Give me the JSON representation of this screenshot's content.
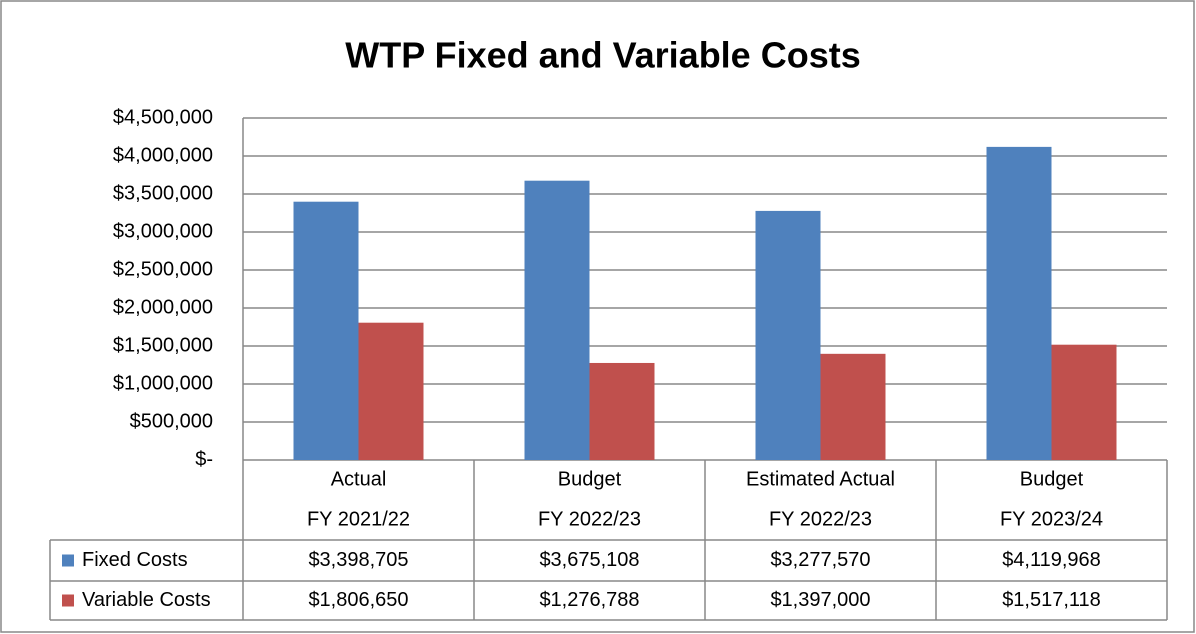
{
  "chart_data": {
    "type": "bar",
    "title": "WTP Fixed and Variable Costs",
    "categories": [
      [
        "Actual",
        "FY 2021/22"
      ],
      [
        "Budget",
        "FY 2022/23"
      ],
      [
        "Estimated Actual",
        "FY 2022/23"
      ],
      [
        "Budget",
        "FY 2023/24"
      ]
    ],
    "series": [
      {
        "name": "Fixed Costs",
        "color": "#4f81bd",
        "values": [
          3398705,
          3675108,
          3277570,
          4119968
        ],
        "value_labels": [
          "$3,398,705",
          "$3,675,108",
          "$3,277,570",
          "$4,119,968"
        ]
      },
      {
        "name": "Variable Costs",
        "color": "#c0504d",
        "values": [
          1806650,
          1276788,
          1397000,
          1517118
        ],
        "value_labels": [
          "$1,806,650",
          "$1,276,788",
          "$1,397,000",
          "$1,517,118"
        ]
      }
    ],
    "ylim": [
      0,
      4500000
    ],
    "yticks": [
      {
        "value": 0,
        "label": "$-"
      },
      {
        "value": 500000,
        "label": "$500,000"
      },
      {
        "value": 1000000,
        "label": "$1,000,000"
      },
      {
        "value": 1500000,
        "label": "$1,500,000"
      },
      {
        "value": 2000000,
        "label": "$2,000,000"
      },
      {
        "value": 2500000,
        "label": "$2,500,000"
      },
      {
        "value": 3000000,
        "label": "$3,000,000"
      },
      {
        "value": 3500000,
        "label": "$3,500,000"
      },
      {
        "value": 4000000,
        "label": "$4,000,000"
      },
      {
        "value": 4500000,
        "label": "$4,500,000"
      }
    ],
    "grid": true
  }
}
